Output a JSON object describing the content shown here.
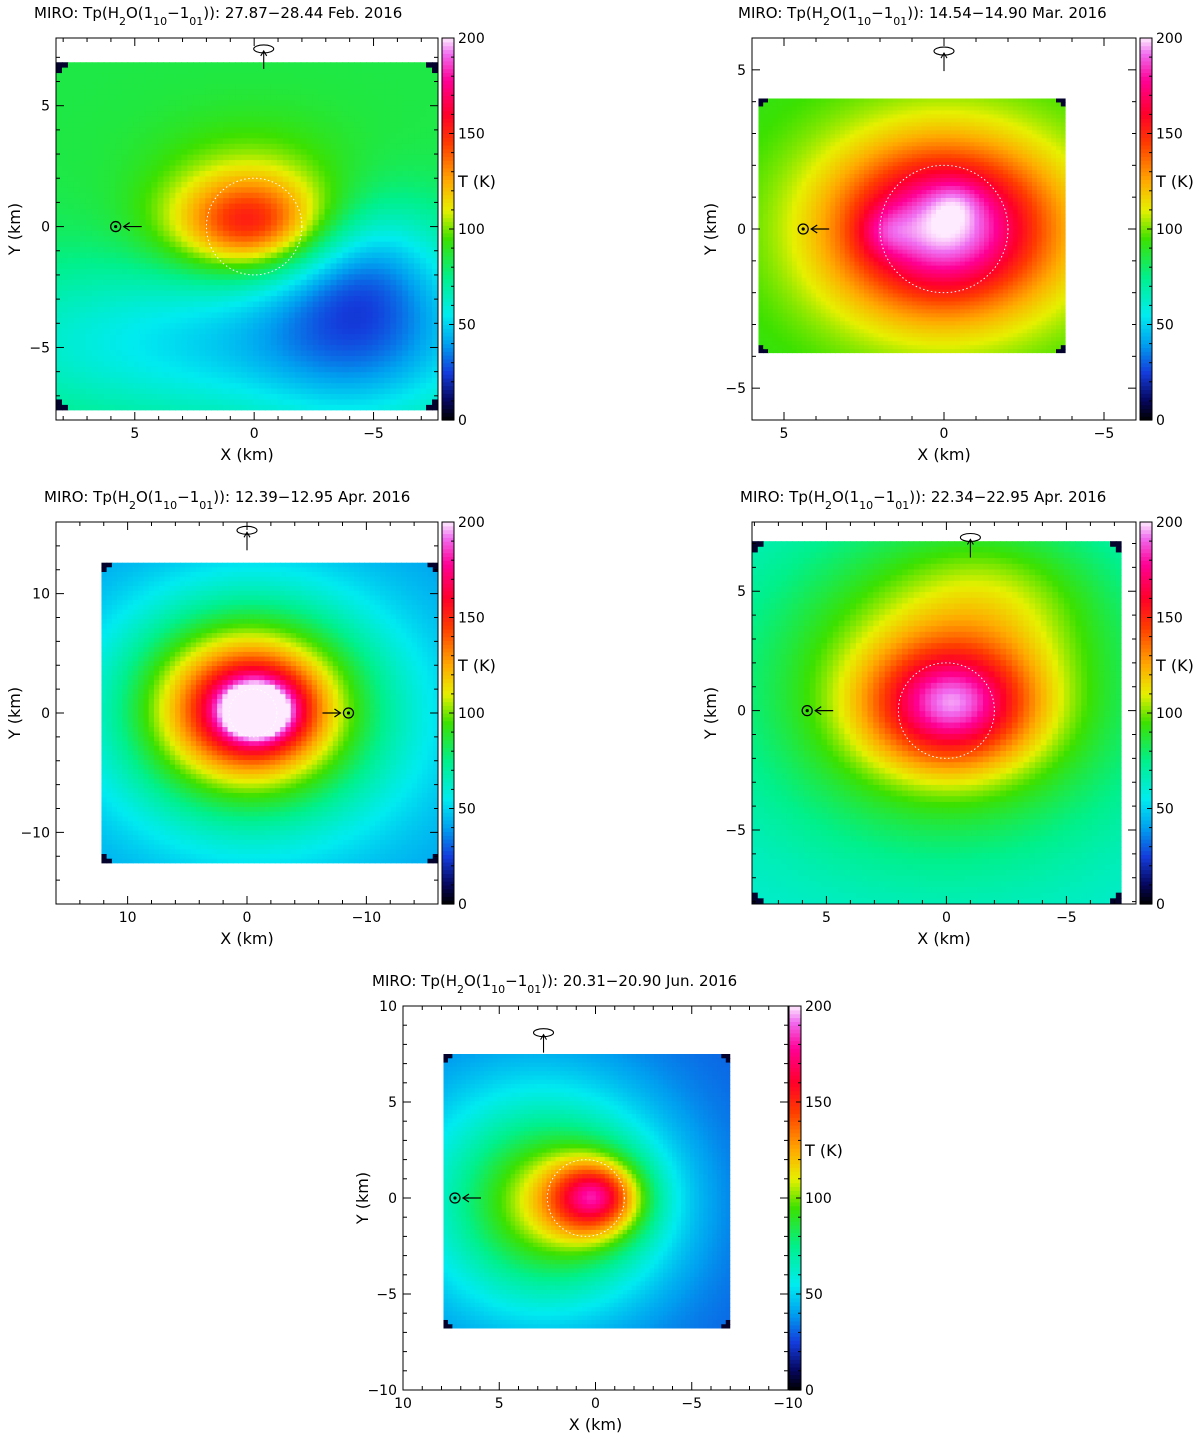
{
  "chart_data": [
    {
      "type": "heatmap",
      "title": {
        "pre": "MIRO: Tp(H",
        "sub2": "2",
        "mid": "O(1",
        "sub_a": "10",
        "dash": "−1",
        "sub_b": "01",
        "post": ")): 27.87−28.44 Feb. 2016"
      },
      "xlabel": "X (km)",
      "ylabel": "Y (km)",
      "colorbar_label": "T (K)",
      "xlim": [
        8.3,
        -7.7
      ],
      "ylim": [
        -8.0,
        7.8
      ],
      "xticks": [
        {
          "v": 5,
          "label": "5"
        },
        {
          "v": 0,
          "label": "0"
        },
        {
          "v": -5,
          "label": "−5"
        }
      ],
      "yticks": [
        {
          "v": 5,
          "label": "5"
        },
        {
          "v": 0,
          "label": "0"
        },
        {
          "v": -5,
          "label": "−5"
        }
      ],
      "data_extent": {
        "x": [
          8.3,
          -7.7
        ],
        "y": [
          -7.6,
          6.8
        ]
      },
      "background_T": 85,
      "blobs": [
        {
          "x": 0.0,
          "y": -4.8,
          "sx": 9.0,
          "sy": 2.5,
          "a": -35
        },
        {
          "x": -4.5,
          "y": -4.5,
          "sx": 3.0,
          "sy": 3.0,
          "a": -20
        },
        {
          "x": -4.5,
          "y": -1.5,
          "sx": 2.5,
          "sy": 2.0,
          "a": -25
        },
        {
          "x": 0.0,
          "y": 3.0,
          "sx": 3.0,
          "sy": 1.5,
          "a": 8
        },
        {
          "x": 0.1,
          "y": 0.2,
          "sx": 2.5,
          "sy": 1.5,
          "a": 65
        },
        {
          "x": 0.2,
          "y": 0.0,
          "sx": 1.3,
          "sy": 0.9,
          "a": 10
        }
      ],
      "nucleus_circle": {
        "x": 0.0,
        "y": 0.0,
        "r": 2.0
      },
      "sun_marker": {
        "x": 5.8,
        "y": 0.0,
        "arrow_dir": "left"
      },
      "spin_marker": {
        "x": -0.4,
        "y": 7.1
      },
      "colorbar": {
        "min": 0,
        "max": 200,
        "ticks": [
          0,
          50,
          100,
          150,
          200
        ]
      }
    },
    {
      "type": "heatmap",
      "title": {
        "pre": "MIRO: Tp(H",
        "sub2": "2",
        "mid": "O(1",
        "sub_a": "10",
        "dash": "−1",
        "sub_b": "01",
        "post": ")): 14.54−14.90 Mar. 2016"
      },
      "xlabel": "X (km)",
      "ylabel": "Y (km)",
      "colorbar_label": "T (K)",
      "xlim": [
        6.0,
        -6.0
      ],
      "ylim": [
        -6.0,
        6.0
      ],
      "xticks": [
        {
          "v": 5,
          "label": "5"
        },
        {
          "v": 0,
          "label": "0"
        },
        {
          "v": -5,
          "label": "−5"
        }
      ],
      "yticks": [
        {
          "v": 5,
          "label": "5"
        },
        {
          "v": 0,
          "label": "0"
        },
        {
          "v": -5,
          "label": "−5"
        }
      ],
      "data_extent": {
        "x": [
          5.8,
          -3.8
        ],
        "y": [
          -3.9,
          4.1
        ]
      },
      "background_T": 90,
      "blobs": [
        {
          "x": 0.0,
          "y": 0.0,
          "sx": 3.2,
          "sy": 2.5,
          "a": 45
        },
        {
          "x": 0.0,
          "y": 0.0,
          "sx": 2.1,
          "sy": 1.6,
          "a": 65
        },
        {
          "x": 1.9,
          "y": -0.1,
          "sx": 0.55,
          "sy": 0.55,
          "a": 15
        },
        {
          "x": -0.4,
          "y": 0.9,
          "sx": 0.6,
          "sy": 0.5,
          "a": 10
        }
      ],
      "nucleus_circle": {
        "x": 0.0,
        "y": 0.0,
        "r": 2.0
      },
      "sun_marker": {
        "x": 4.4,
        "y": 0.0,
        "arrow_dir": "left"
      },
      "spin_marker": {
        "x": 0.0,
        "y": 5.4
      },
      "colorbar": {
        "min": 0,
        "max": 200,
        "ticks": [
          0,
          50,
          100,
          150,
          200
        ]
      }
    },
    {
      "type": "heatmap",
      "title": {
        "pre": "MIRO: Tp(H",
        "sub2": "2",
        "mid": "O(1",
        "sub_a": "10",
        "dash": "−1",
        "sub_b": "01",
        "post": ")): 12.39−12.95 Apr. 2016"
      },
      "xlabel": "X (km)",
      "ylabel": "Y (km)",
      "colorbar_label": "T (K)",
      "xlim": [
        16.0,
        -16.0
      ],
      "ylim": [
        -16.0,
        16.0
      ],
      "xticks": [
        {
          "v": 10,
          "label": "10"
        },
        {
          "v": 0,
          "label": "0"
        },
        {
          "v": -10,
          "label": "−10"
        }
      ],
      "yticks": [
        {
          "v": 10,
          "label": "10"
        },
        {
          "v": 0,
          "label": "0"
        },
        {
          "v": -10,
          "label": "−10"
        }
      ],
      "data_extent": {
        "x": [
          12.2,
          -16.0
        ],
        "y": [
          -12.6,
          12.6
        ]
      },
      "background_T": 38,
      "blobs": [
        {
          "x": -1.0,
          "y": -0.5,
          "sx": 10.0,
          "sy": 8.0,
          "a": 40
        },
        {
          "x": 0.0,
          "y": 0.5,
          "sx": 6.0,
          "sy": 5.0,
          "a": 85
        },
        {
          "x": -0.8,
          "y": 0.2,
          "sx": 2.6,
          "sy": 2.1,
          "a": 75
        },
        {
          "x": -0.8,
          "y": 0.1,
          "sx": 1.3,
          "sy": 1.0,
          "a": 85
        }
      ],
      "nucleus_circle": {
        "x": -0.5,
        "y": 0.0,
        "r": 2.0
      },
      "sun_marker": {
        "x": -8.5,
        "y": 0.0,
        "arrow_dir": "right"
      },
      "spin_marker": {
        "x": 0.0,
        "y": 14.8
      },
      "colorbar": {
        "min": 0,
        "max": 200,
        "ticks": [
          0,
          50,
          100,
          150,
          200
        ]
      }
    },
    {
      "type": "heatmap",
      "title": {
        "pre": "MIRO: Tp(H",
        "sub2": "2",
        "mid": "O(1",
        "sub_a": "10",
        "dash": "−1",
        "sub_b": "01",
        "post": ")): 22.34−22.95 Apr. 2016"
      },
      "xlabel": "X (km)",
      "ylabel": "Y (km)",
      "colorbar_label": "T (K)",
      "xlim": [
        8.1,
        -7.9
      ],
      "ylim": [
        -8.1,
        7.9
      ],
      "xticks": [
        {
          "v": 5,
          "label": "5"
        },
        {
          "v": 0,
          "label": "0"
        },
        {
          "v": -5,
          "label": "−5"
        }
      ],
      "yticks": [
        {
          "v": 5,
          "label": "5"
        },
        {
          "v": 0,
          "label": "0"
        },
        {
          "v": -5,
          "label": "−5"
        }
      ],
      "data_extent": {
        "x": [
          8.1,
          -7.3
        ],
        "y": [
          -8.1,
          7.1
        ]
      },
      "background_T": 60,
      "blobs": [
        {
          "x": 0.0,
          "y": 1.0,
          "sx": 5.5,
          "sy": 4.5,
          "a": 55
        },
        {
          "x": -2.0,
          "y": 5.0,
          "sx": 3.0,
          "sy": 2.0,
          "a": 15
        },
        {
          "x": -0.2,
          "y": 0.2,
          "sx": 2.4,
          "sy": 1.8,
          "a": 70
        },
        {
          "x": -0.3,
          "y": 0.4,
          "sx": 1.4,
          "sy": 1.0,
          "a": 10
        }
      ],
      "nucleus_circle": {
        "x": 0.0,
        "y": 0.0,
        "r": 2.0
      },
      "sun_marker": {
        "x": 5.8,
        "y": 0.0,
        "arrow_dir": "left"
      },
      "spin_marker": {
        "x": -1.0,
        "y": 7.0
      },
      "colorbar": {
        "min": 0,
        "max": 200,
        "ticks": [
          0,
          50,
          100,
          150,
          200
        ]
      }
    },
    {
      "type": "heatmap",
      "title": {
        "pre": "MIRO: Tp(H",
        "sub2": "2",
        "mid": "O(1",
        "sub_a": "10",
        "dash": "−1",
        "sub_b": "01",
        "post": ")): 20.31−20.90 Jun. 2016"
      },
      "xlabel": "X (km)",
      "ylabel": "Y (km)",
      "colorbar_label": "T (K)",
      "xlim": [
        10.0,
        -10.0
      ],
      "ylim": [
        -10.0,
        10.0
      ],
      "xticks": [
        {
          "v": 10,
          "label": "10"
        },
        {
          "v": 5,
          "label": "5"
        },
        {
          "v": 0,
          "label": "0"
        },
        {
          "v": -5,
          "label": "−5"
        },
        {
          "v": -10,
          "label": "−10"
        }
      ],
      "yticks": [
        {
          "v": 10,
          "label": "10"
        },
        {
          "v": 5,
          "label": "5"
        },
        {
          "v": 0,
          "label": "0"
        },
        {
          "v": -5,
          "label": "−5"
        },
        {
          "v": -10,
          "label": "−10"
        }
      ],
      "data_extent": {
        "x": [
          7.9,
          -7.0
        ],
        "y": [
          -6.8,
          7.5
        ]
      },
      "background_T": 30,
      "blobs": [
        {
          "x": 3.5,
          "y": 0.0,
          "sx": 5.0,
          "sy": 5.0,
          "a": 38
        },
        {
          "x": 1.5,
          "y": -0.3,
          "sx": 3.5,
          "sy": 3.0,
          "a": 45
        },
        {
          "x": 0.0,
          "y": 0.0,
          "sx": 1.7,
          "sy": 1.4,
          "a": 70
        },
        {
          "x": 0.0,
          "y": 0.2,
          "sx": 0.9,
          "sy": 0.7,
          "a": 10
        }
      ],
      "nucleus_circle": {
        "x": 0.5,
        "y": 0.0,
        "r": 2.0
      },
      "sun_marker": {
        "x": 7.3,
        "y": 0.0,
        "arrow_dir": "left"
      },
      "spin_marker": {
        "x": 2.7,
        "y": 8.3
      },
      "colorbar": {
        "min": 0,
        "max": 200,
        "ticks": [
          0,
          50,
          100,
          150,
          200
        ]
      }
    }
  ]
}
